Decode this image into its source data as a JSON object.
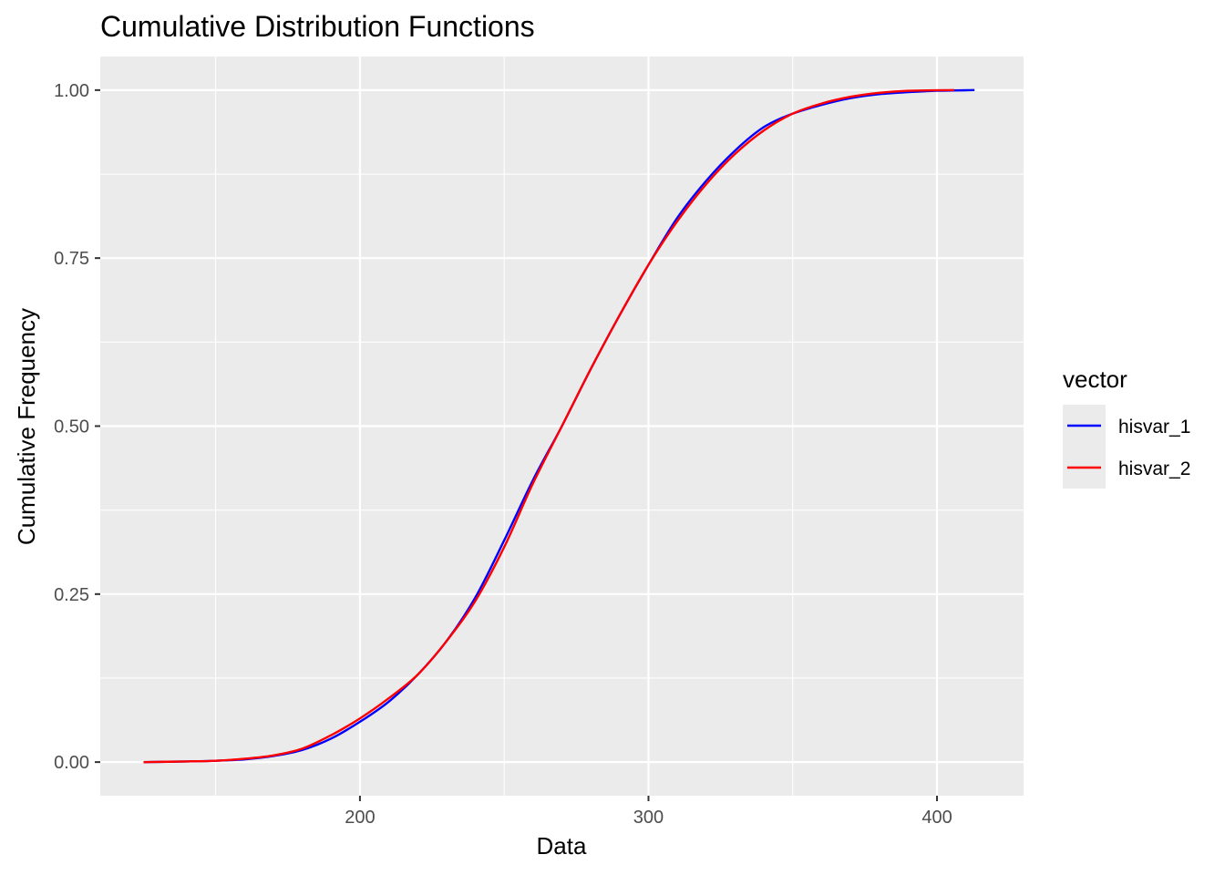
{
  "chart_data": {
    "type": "line",
    "title": "Cumulative Distribution Functions",
    "xlabel": "Data",
    "ylabel": "Cumulative Frequency",
    "xlim": [
      110,
      430
    ],
    "ylim": [
      -0.05,
      1.05
    ],
    "x_ticks": [
      200,
      300,
      400
    ],
    "x_tick_labels": [
      "200",
      "300",
      "400"
    ],
    "y_ticks": [
      0,
      0.25,
      0.5,
      0.75,
      1.0
    ],
    "y_tick_labels": [
      "0.00",
      "0.25",
      "0.50",
      "0.75",
      "1.00"
    ],
    "grid": true,
    "legend": {
      "title": "vector",
      "position": "right"
    },
    "series": [
      {
        "name": "hisvar_1",
        "color": "#0000FF",
        "points": [
          [
            125,
            0.0
          ],
          [
            140,
            0.001
          ],
          [
            150,
            0.002
          ],
          [
            160,
            0.004
          ],
          [
            170,
            0.009
          ],
          [
            180,
            0.018
          ],
          [
            190,
            0.035
          ],
          [
            200,
            0.06
          ],
          [
            210,
            0.09
          ],
          [
            220,
            0.13
          ],
          [
            230,
            0.18
          ],
          [
            240,
            0.245
          ],
          [
            250,
            0.33
          ],
          [
            260,
            0.42
          ],
          [
            270,
            0.5
          ],
          [
            280,
            0.585
          ],
          [
            290,
            0.665
          ],
          [
            300,
            0.74
          ],
          [
            310,
            0.81
          ],
          [
            320,
            0.865
          ],
          [
            330,
            0.91
          ],
          [
            340,
            0.945
          ],
          [
            350,
            0.965
          ],
          [
            360,
            0.978
          ],
          [
            370,
            0.988
          ],
          [
            380,
            0.994
          ],
          [
            390,
            0.997
          ],
          [
            400,
            0.999
          ],
          [
            413,
            1.0
          ]
        ]
      },
      {
        "name": "hisvar_2",
        "color": "#FF0000",
        "points": [
          [
            125,
            0.0
          ],
          [
            140,
            0.001
          ],
          [
            150,
            0.002
          ],
          [
            160,
            0.005
          ],
          [
            170,
            0.01
          ],
          [
            180,
            0.02
          ],
          [
            190,
            0.04
          ],
          [
            200,
            0.065
          ],
          [
            210,
            0.095
          ],
          [
            220,
            0.13
          ],
          [
            230,
            0.18
          ],
          [
            240,
            0.24
          ],
          [
            250,
            0.32
          ],
          [
            260,
            0.415
          ],
          [
            270,
            0.5
          ],
          [
            280,
            0.585
          ],
          [
            290,
            0.665
          ],
          [
            300,
            0.74
          ],
          [
            310,
            0.805
          ],
          [
            320,
            0.86
          ],
          [
            330,
            0.905
          ],
          [
            340,
            0.94
          ],
          [
            350,
            0.965
          ],
          [
            360,
            0.98
          ],
          [
            370,
            0.99
          ],
          [
            380,
            0.996
          ],
          [
            390,
            0.999
          ],
          [
            406,
            1.0
          ]
        ]
      }
    ]
  }
}
